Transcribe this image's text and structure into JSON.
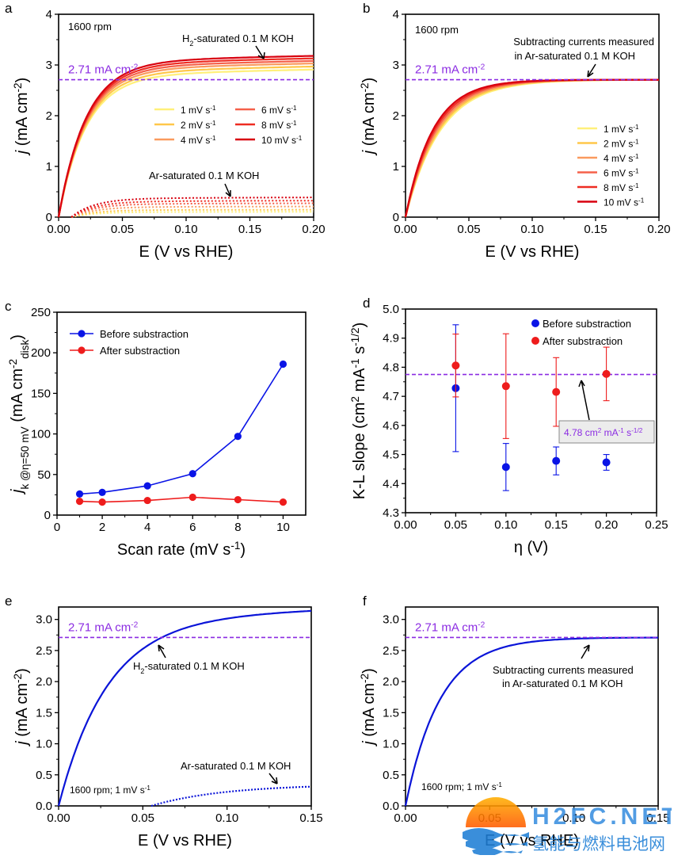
{
  "figure": {
    "watermark": {
      "latin": "H2FC.NET",
      "chinese": "氢能与燃料电池网"
    }
  },
  "chart_data": [
    {
      "panel": "a",
      "type": "line",
      "xlabel": "E (V vs RHE)",
      "ylabel": "j (mA cm-2)",
      "xlim": [
        0,
        0.2
      ],
      "ylim": [
        0,
        4
      ],
      "xticks": [
        0,
        0.05,
        0.1,
        0.15,
        0.2
      ],
      "xtick_labels": [
        "0.00",
        "0.05",
        "0.10",
        "0.15",
        "0.20"
      ],
      "yticks": [
        0,
        1,
        2,
        3,
        4
      ],
      "ytick_labels": [
        "0",
        "1",
        "2",
        "3",
        "4"
      ],
      "annotations": [
        "1600 rpm",
        "H2-saturated 0.1 M KOH",
        "Ar-saturated 0.1 M KOH",
        "2.71 mA cm-2"
      ],
      "hline": 2.71,
      "legend": {
        "placement": "center-right",
        "entries": [
          "1 mV s-1",
          "2 mV s-1",
          "4 mV s-1",
          "6 mV s-1",
          "8 mV s-1",
          "10 mV s-1"
        ]
      },
      "colors": [
        "#fff07a",
        "#ffc74a",
        "#fa9a5e",
        "#f5604a",
        "#ee2c22",
        "#d8000f"
      ],
      "series": [
        {
          "name": "1 mV s-1",
          "plateau": 2.8,
          "ar_plateau": 0.1
        },
        {
          "name": "2 mV s-1",
          "plateau": 2.86,
          "ar_plateau": 0.14
        },
        {
          "name": "4 mV s-1",
          "plateau": 2.92,
          "ar_plateau": 0.2
        },
        {
          "name": "6 mV s-1",
          "plateau": 2.97,
          "ar_plateau": 0.26
        },
        {
          "name": "8 mV s-1",
          "plateau": 3.02,
          "ar_plateau": 0.31
        },
        {
          "name": "10 mV s-1",
          "plateau": 3.07,
          "ar_plateau": 0.37
        }
      ]
    },
    {
      "panel": "b",
      "type": "line",
      "xlabel": "E (V vs RHE)",
      "ylabel": "j (mA cm-2)",
      "xlim": [
        0,
        0.2
      ],
      "ylim": [
        0,
        4
      ],
      "xticks": [
        0,
        0.05,
        0.1,
        0.15,
        0.2
      ],
      "xtick_labels": [
        "0.00",
        "0.05",
        "0.10",
        "0.15",
        "0.20"
      ],
      "yticks": [
        0,
        1,
        2,
        3,
        4
      ],
      "ytick_labels": [
        "0",
        "1",
        "2",
        "3",
        "4"
      ],
      "annotations": [
        "1600 rpm",
        "Subtracting currents measured",
        "in Ar-saturated 0.1 M KOH",
        "2.71 mA cm-2"
      ],
      "hline": 2.71,
      "legend": {
        "placement": "bottom-right",
        "entries": [
          "1 mV s-1",
          "2 mV s-1",
          "4 mV s-1",
          "6 mV s-1",
          "8 mV s-1",
          "10 mV s-1"
        ]
      },
      "colors": [
        "#fff07a",
        "#ffc74a",
        "#fa9a5e",
        "#f5604a",
        "#ee2c22",
        "#d8000f"
      ],
      "series_plateau": 2.71
    },
    {
      "panel": "c",
      "type": "scatter",
      "xlabel": "Scan rate (mV s-1)",
      "ylabel": "jk@η=50 mV (mA cm-2disk)",
      "xlim": [
        0,
        11
      ],
      "ylim": [
        0,
        250
      ],
      "xticks": [
        0,
        2,
        4,
        6,
        8,
        10
      ],
      "xtick_labels": [
        "0",
        "2",
        "4",
        "6",
        "8",
        "10"
      ],
      "yticks": [
        0,
        50,
        100,
        150,
        200,
        250
      ],
      "ytick_labels": [
        "0",
        "50",
        "100",
        "150",
        "200",
        "250"
      ],
      "legend": {
        "placement": "top-left",
        "entries": [
          "Before substraction",
          "After substraction"
        ]
      },
      "x": [
        1,
        2,
        4,
        6,
        8,
        10
      ],
      "series": [
        {
          "name": "Before substraction",
          "color": "#0a14e6",
          "values": [
            26,
            28,
            36,
            51,
            97,
            186
          ]
        },
        {
          "name": "After substraction",
          "color": "#ee1c1c",
          "values": [
            17,
            16,
            18,
            22,
            19,
            16
          ]
        }
      ]
    },
    {
      "panel": "d",
      "type": "scatter",
      "xlabel": "η (V)",
      "ylabel": "K-L slope (cm2 mA-1 s-1/2)",
      "xlim": [
        0,
        0.25
      ],
      "ylim": [
        4.3,
        5.0
      ],
      "xticks": [
        0,
        0.05,
        0.1,
        0.15,
        0.2,
        0.25
      ],
      "xtick_labels": [
        "0.00",
        "0.05",
        "0.10",
        "0.15",
        "0.20",
        "0.25"
      ],
      "yticks": [
        4.3,
        4.4,
        4.5,
        4.6,
        4.7,
        4.8,
        4.9,
        5.0
      ],
      "ytick_labels": [
        "4.3",
        "4.4",
        "4.5",
        "4.6",
        "4.7",
        "4.8",
        "4.9",
        "5.0"
      ],
      "legend": {
        "placement": "top-right",
        "entries": [
          "Before substraction",
          "After substraction"
        ]
      },
      "hline": 4.775,
      "annotation": "4.78 cm2 mA-1 s-1/2",
      "x": [
        0.05,
        0.1,
        0.15,
        0.2
      ],
      "series": [
        {
          "name": "Before substraction",
          "color": "#0a14e6",
          "values": [
            4.728,
            4.457,
            4.478,
            4.473
          ],
          "errors": [
            0.218,
            0.081,
            0.048,
            0.027
          ]
        },
        {
          "name": "After substraction",
          "color": "#ee1c1c",
          "values": [
            4.806,
            4.735,
            4.715,
            4.777
          ],
          "errors": [
            0.108,
            0.18,
            0.118,
            0.092
          ]
        }
      ]
    },
    {
      "panel": "e",
      "type": "line",
      "xlabel": "E (V vs RHE)",
      "ylabel": "j (mA cm-2)",
      "xlim": [
        0,
        0.15
      ],
      "ylim": [
        0,
        3.2
      ],
      "xticks": [
        0,
        0.05,
        0.1,
        0.15
      ],
      "xtick_labels": [
        "0.00",
        "0.05",
        "0.10",
        "0.15"
      ],
      "yticks": [
        0,
        0.5,
        1,
        1.5,
        2,
        2.5,
        3
      ],
      "ytick_labels": [
        "0.0",
        "0.5",
        "1.0",
        "1.5",
        "2.0",
        "2.5",
        "3.0"
      ],
      "annotations": [
        "2.71 mA cm-2",
        "H2-saturated 0.1 M KOH",
        "Ar-saturated 0.1 M KOH",
        "1600 rpm; 1 mV s-1"
      ],
      "hline": 2.71,
      "series": [
        {
          "name": "H2-saturated",
          "color": "#0a14d8",
          "plateau": 3.02
        },
        {
          "name": "Ar-saturated",
          "color": "#0a14d8",
          "end_value": 0.31
        }
      ]
    },
    {
      "panel": "f",
      "type": "line",
      "xlabel": "E (V vs RHE)",
      "ylabel": "j (mA cm-2)",
      "xlim": [
        0,
        0.15
      ],
      "ylim": [
        0,
        3.2
      ],
      "xticks": [
        0,
        0.05,
        0.1,
        0.15
      ],
      "xtick_labels": [
        "0.00",
        "0.05",
        "0.10",
        "0.15"
      ],
      "yticks": [
        0,
        0.5,
        1,
        1.5,
        2,
        2.5,
        3
      ],
      "ytick_labels": [
        "0.0",
        "0.5",
        "1.0",
        "1.5",
        "2.0",
        "2.5",
        "3.0"
      ],
      "annotations": [
        "2.71 mA cm-2",
        "Subtracting currents measured",
        "in Ar-saturated 0.1 M KOH",
        "1600 rpm; 1 mV s-1"
      ],
      "hline": 2.71,
      "series": [
        {
          "name": "Subtracted",
          "color": "#0a14d8",
          "plateau": 2.71
        }
      ]
    }
  ]
}
